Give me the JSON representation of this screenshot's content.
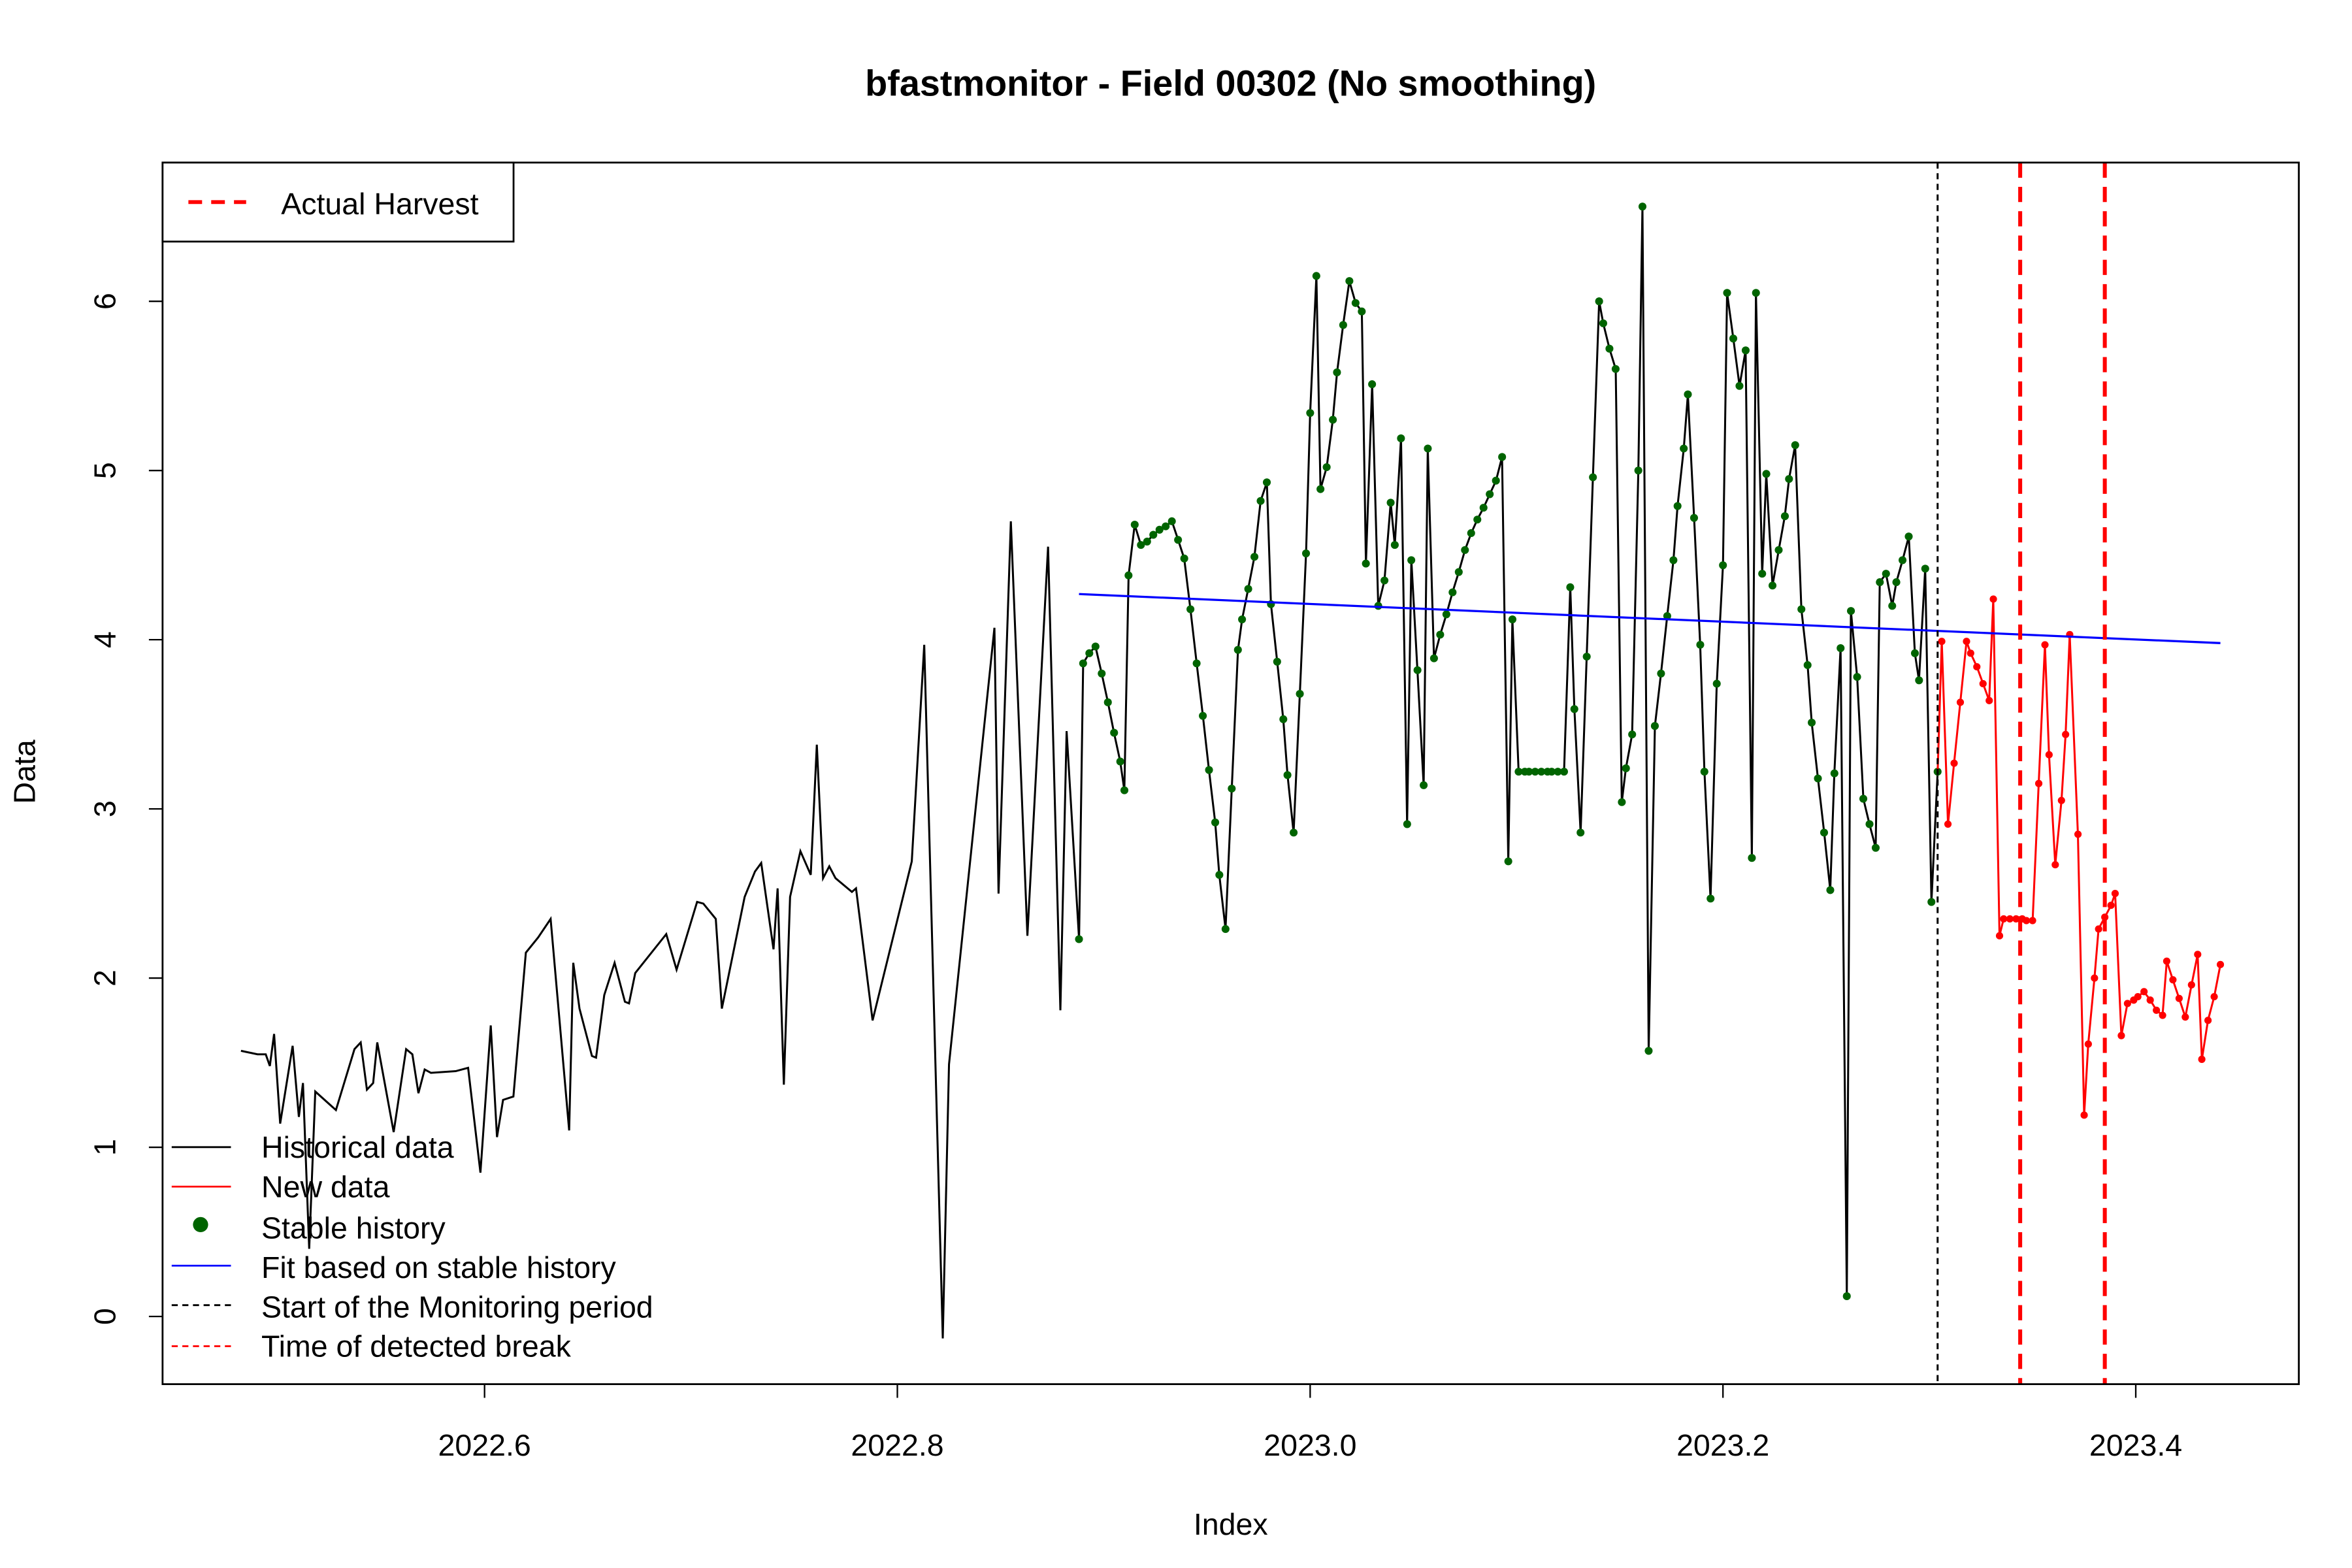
{
  "chart_data": {
    "type": "line",
    "title": "bfastmonitor - Field 00302 (No smoothing)",
    "xlabel": "Index",
    "ylabel": "Data",
    "xlim": [
      2022.444,
      2023.479
    ],
    "ylim": [
      -0.4,
      6.82
    ],
    "x_ticks": [
      {
        "v": 2022.6,
        "label": "2022.6"
      },
      {
        "v": 2022.8,
        "label": "2022.8"
      },
      {
        "v": 2023.0,
        "label": "2023.0"
      },
      {
        "v": 2023.2,
        "label": "2023.2"
      },
      {
        "v": 2023.4,
        "label": "2023.4"
      }
    ],
    "y_ticks": [
      {
        "v": 0,
        "label": "0"
      },
      {
        "v": 1,
        "label": "1"
      },
      {
        "v": 2,
        "label": "2"
      },
      {
        "v": 3,
        "label": "3"
      },
      {
        "v": 4,
        "label": "4"
      },
      {
        "v": 5,
        "label": "5"
      },
      {
        "v": 6,
        "label": "6"
      }
    ],
    "grid": false,
    "colors": {
      "historical": "#000000",
      "new": "#ff0000",
      "stable": "#006400",
      "fit": "#0000ff",
      "monitor_start": "#000000",
      "harvest": "#ff0000"
    },
    "historical_unstable": [
      [
        2022.482,
        1.57
      ],
      [
        2022.49,
        1.55
      ],
      [
        2022.494,
        1.55
      ],
      [
        2022.496,
        1.48
      ],
      [
        2022.498,
        1.67
      ],
      [
        2022.501,
        1.14
      ],
      [
        2022.507,
        1.6
      ],
      [
        2022.51,
        1.18
      ],
      [
        2022.512,
        1.38
      ],
      [
        2022.515,
        0.4
      ],
      [
        2022.518,
        1.33
      ],
      [
        2022.528,
        1.22
      ],
      [
        2022.537,
        1.58
      ],
      [
        2022.54,
        1.62
      ],
      [
        2022.543,
        1.34
      ],
      [
        2022.546,
        1.38
      ],
      [
        2022.548,
        1.62
      ],
      [
        2022.556,
        1.09
      ],
      [
        2022.562,
        1.58
      ],
      [
        2022.565,
        1.55
      ],
      [
        2022.568,
        1.32
      ],
      [
        2022.571,
        1.46
      ],
      [
        2022.574,
        1.44
      ],
      [
        2022.586,
        1.45
      ],
      [
        2022.592,
        1.47
      ],
      [
        2022.598,
        0.85
      ],
      [
        2022.603,
        1.72
      ],
      [
        2022.606,
        1.06
      ],
      [
        2022.609,
        1.28
      ],
      [
        2022.614,
        1.3
      ],
      [
        2022.62,
        2.15
      ],
      [
        2022.626,
        2.24
      ],
      [
        2022.632,
        2.35
      ],
      [
        2022.641,
        1.1
      ],
      [
        2022.643,
        2.09
      ],
      [
        2022.646,
        1.82
      ],
      [
        2022.652,
        1.54
      ],
      [
        2022.654,
        1.53
      ],
      [
        2022.658,
        1.9
      ],
      [
        2022.663,
        2.09
      ],
      [
        2022.668,
        1.86
      ],
      [
        2022.67,
        1.85
      ],
      [
        2022.673,
        2.03
      ],
      [
        2022.688,
        2.26
      ],
      [
        2022.693,
        2.05
      ],
      [
        2022.703,
        2.45
      ],
      [
        2022.706,
        2.44
      ],
      [
        2022.712,
        2.35
      ],
      [
        2022.715,
        1.82
      ],
      [
        2022.726,
        2.48
      ],
      [
        2022.731,
        2.63
      ],
      [
        2022.734,
        2.68
      ],
      [
        2022.74,
        2.17
      ],
      [
        2022.742,
        2.53
      ],
      [
        2022.745,
        1.37
      ],
      [
        2022.748,
        2.48
      ],
      [
        2022.753,
        2.75
      ],
      [
        2022.758,
        2.61
      ],
      [
        2022.761,
        3.38
      ],
      [
        2022.764,
        2.59
      ],
      [
        2022.767,
        2.66
      ],
      [
        2022.77,
        2.59
      ],
      [
        2022.778,
        2.51
      ],
      [
        2022.78,
        2.53
      ],
      [
        2022.788,
        1.75
      ],
      [
        2022.807,
        2.69
      ],
      [
        2022.813,
        3.97
      ],
      [
        2022.822,
        -0.13
      ],
      [
        2022.825,
        1.49
      ],
      [
        2022.847,
        4.07
      ],
      [
        2022.849,
        2.5
      ],
      [
        2022.855,
        4.7
      ],
      [
        2022.863,
        2.25
      ],
      [
        2022.873,
        4.55
      ],
      [
        2022.879,
        1.81
      ],
      [
        2022.882,
        3.46
      ]
    ],
    "stable_history": [
      [
        2022.888,
        2.23
      ],
      [
        2022.89,
        3.86
      ],
      [
        2022.893,
        3.92
      ],
      [
        2022.896,
        3.96
      ],
      [
        2022.899,
        3.8
      ],
      [
        2022.902,
        3.63
      ],
      [
        2022.905,
        3.45
      ],
      [
        2022.908,
        3.28
      ],
      [
        2022.91,
        3.11
      ],
      [
        2022.912,
        4.38
      ],
      [
        2022.915,
        4.68
      ],
      [
        2022.918,
        4.56
      ],
      [
        2022.921,
        4.58
      ],
      [
        2022.924,
        4.62
      ],
      [
        2022.927,
        4.65
      ],
      [
        2022.93,
        4.67
      ],
      [
        2022.933,
        4.7
      ],
      [
        2022.936,
        4.59
      ],
      [
        2022.939,
        4.48
      ],
      [
        2022.942,
        4.18
      ],
      [
        2022.945,
        3.86
      ],
      [
        2022.948,
        3.55
      ],
      [
        2022.951,
        3.23
      ],
      [
        2022.954,
        2.92
      ],
      [
        2022.956,
        2.61
      ],
      [
        2022.959,
        2.29
      ],
      [
        2022.962,
        3.12
      ],
      [
        2022.965,
        3.94
      ],
      [
        2022.967,
        4.12
      ],
      [
        2022.97,
        4.3
      ],
      [
        2022.973,
        4.49
      ],
      [
        2022.976,
        4.82
      ],
      [
        2022.979,
        4.93
      ],
      [
        2022.981,
        4.21
      ],
      [
        2022.984,
        3.87
      ],
      [
        2022.987,
        3.53
      ],
      [
        2022.989,
        3.2
      ],
      [
        2022.992,
        2.86
      ],
      [
        2022.995,
        3.68
      ],
      [
        2022.998,
        4.51
      ],
      [
        2023.0,
        5.34
      ],
      [
        2023.003,
        6.15
      ],
      [
        2023.005,
        4.89
      ],
      [
        2023.008,
        5.02
      ],
      [
        2023.011,
        5.3
      ],
      [
        2023.013,
        5.58
      ],
      [
        2023.016,
        5.86
      ],
      [
        2023.019,
        6.12
      ],
      [
        2023.022,
        5.99
      ],
      [
        2023.025,
        5.94
      ],
      [
        2023.027,
        4.45
      ],
      [
        2023.03,
        5.51
      ],
      [
        2023.033,
        4.2
      ],
      [
        2023.036,
        4.35
      ],
      [
        2023.039,
        4.81
      ],
      [
        2023.041,
        4.56
      ],
      [
        2023.044,
        5.19
      ],
      [
        2023.047,
        2.91
      ],
      [
        2023.049,
        4.47
      ],
      [
        2023.052,
        3.82
      ],
      [
        2023.055,
        3.14
      ],
      [
        2023.057,
        5.13
      ],
      [
        2023.06,
        3.89
      ],
      [
        2023.063,
        4.03
      ],
      [
        2023.066,
        4.15
      ],
      [
        2023.069,
        4.28
      ],
      [
        2023.072,
        4.4
      ],
      [
        2023.075,
        4.53
      ],
      [
        2023.078,
        4.63
      ],
      [
        2023.081,
        4.71
      ],
      [
        2023.084,
        4.78
      ],
      [
        2023.087,
        4.86
      ],
      [
        2023.09,
        4.94
      ],
      [
        2023.093,
        5.08
      ],
      [
        2023.096,
        2.69
      ],
      [
        2023.098,
        4.12
      ],
      [
        2023.101,
        3.22
      ],
      [
        2023.104,
        3.22
      ],
      [
        2023.106,
        3.22
      ],
      [
        2023.109,
        3.22
      ],
      [
        2023.112,
        3.22
      ],
      [
        2023.115,
        3.22
      ],
      [
        2023.117,
        3.22
      ],
      [
        2023.12,
        3.22
      ],
      [
        2023.123,
        3.22
      ],
      [
        2023.126,
        4.31
      ],
      [
        2023.128,
        3.59
      ],
      [
        2023.131,
        2.86
      ],
      [
        2023.134,
        3.9
      ],
      [
        2023.137,
        4.96
      ],
      [
        2023.14,
        6.0
      ],
      [
        2023.142,
        5.87
      ],
      [
        2023.145,
        5.72
      ],
      [
        2023.148,
        5.6
      ],
      [
        2023.151,
        3.04
      ],
      [
        2023.153,
        3.24
      ],
      [
        2023.156,
        3.44
      ],
      [
        2023.159,
        5.0
      ],
      [
        2023.161,
        6.56
      ],
      [
        2023.164,
        1.57
      ],
      [
        2023.167,
        3.49
      ],
      [
        2023.17,
        3.8
      ],
      [
        2023.173,
        4.14
      ],
      [
        2023.176,
        4.47
      ],
      [
        2023.178,
        4.79
      ],
      [
        2023.181,
        5.13
      ],
      [
        2023.183,
        5.45
      ],
      [
        2023.186,
        4.72
      ],
      [
        2023.189,
        3.97
      ],
      [
        2023.191,
        3.22
      ],
      [
        2023.194,
        2.47
      ],
      [
        2023.197,
        3.74
      ],
      [
        2023.2,
        4.44
      ],
      [
        2023.202,
        6.05
      ],
      [
        2023.205,
        5.78
      ],
      [
        2023.208,
        5.5
      ],
      [
        2023.211,
        5.71
      ],
      [
        2023.214,
        2.71
      ],
      [
        2023.216,
        6.05
      ],
      [
        2023.219,
        4.39
      ],
      [
        2023.221,
        4.98
      ],
      [
        2023.224,
        4.32
      ],
      [
        2023.227,
        4.53
      ],
      [
        2023.23,
        4.73
      ],
      [
        2023.232,
        4.95
      ],
      [
        2023.235,
        5.15
      ],
      [
        2023.238,
        4.18
      ],
      [
        2023.241,
        3.85
      ],
      [
        2023.243,
        3.51
      ],
      [
        2023.246,
        3.18
      ],
      [
        2023.249,
        2.86
      ],
      [
        2023.252,
        2.52
      ],
      [
        2023.254,
        3.21
      ],
      [
        2023.257,
        3.95
      ],
      [
        2023.26,
        0.12
      ],
      [
        2023.262,
        4.17
      ],
      [
        2023.265,
        3.78
      ],
      [
        2023.268,
        3.06
      ],
      [
        2023.271,
        2.91
      ],
      [
        2023.274,
        2.77
      ],
      [
        2023.276,
        4.34
      ],
      [
        2023.279,
        4.39
      ],
      [
        2023.282,
        4.2
      ],
      [
        2023.284,
        4.34
      ],
      [
        2023.287,
        4.47
      ],
      [
        2023.29,
        4.61
      ],
      [
        2023.293,
        3.92
      ],
      [
        2023.295,
        3.76
      ],
      [
        2023.298,
        4.42
      ],
      [
        2023.301,
        2.45
      ],
      [
        2023.304,
        3.22
      ]
    ],
    "new_data": [
      [
        2023.306,
        3.99
      ],
      [
        2023.309,
        2.91
      ],
      [
        2023.312,
        3.27
      ],
      [
        2023.315,
        3.63
      ],
      [
        2023.318,
        3.99
      ],
      [
        2023.32,
        3.92
      ],
      [
        2023.323,
        3.84
      ],
      [
        2023.326,
        3.74
      ],
      [
        2023.329,
        3.64
      ],
      [
        2023.331,
        4.24
      ],
      [
        2023.334,
        2.25
      ],
      [
        2023.336,
        2.35
      ],
      [
        2023.339,
        2.35
      ],
      [
        2023.342,
        2.35
      ],
      [
        2023.345,
        2.35
      ],
      [
        2023.347,
        2.34
      ],
      [
        2023.35,
        2.34
      ],
      [
        2023.353,
        3.15
      ],
      [
        2023.356,
        3.97
      ],
      [
        2023.358,
        3.32
      ],
      [
        2023.361,
        2.67
      ],
      [
        2023.364,
        3.05
      ],
      [
        2023.366,
        3.44
      ],
      [
        2023.368,
        4.03
      ],
      [
        2023.372,
        2.85
      ],
      [
        2023.375,
        1.19
      ],
      [
        2023.377,
        1.61
      ],
      [
        2023.38,
        2.0
      ],
      [
        2023.382,
        2.29
      ],
      [
        2023.385,
        2.36
      ],
      [
        2023.388,
        2.43
      ],
      [
        2023.39,
        2.5
      ],
      [
        2023.393,
        1.66
      ],
      [
        2023.396,
        1.85
      ],
      [
        2023.399,
        1.87
      ],
      [
        2023.401,
        1.89
      ],
      [
        2023.404,
        1.92
      ],
      [
        2023.407,
        1.87
      ],
      [
        2023.41,
        1.81
      ],
      [
        2023.413,
        1.78
      ],
      [
        2023.415,
        2.1
      ],
      [
        2023.418,
        1.99
      ],
      [
        2023.421,
        1.88
      ],
      [
        2023.424,
        1.77
      ],
      [
        2023.427,
        1.96
      ],
      [
        2023.43,
        2.14
      ],
      [
        2023.432,
        1.52
      ],
      [
        2023.435,
        1.75
      ],
      [
        2023.438,
        1.89
      ],
      [
        2023.441,
        2.08
      ]
    ],
    "fit_line": [
      [
        2022.888,
        4.27
      ],
      [
        2023.441,
        3.98
      ]
    ],
    "monitoring_start": 2023.304,
    "actual_harvest": [
      2023.344,
      2023.385
    ],
    "legend_top": {
      "placement": "top-left",
      "label": "Actual Harvest"
    },
    "legend_bottom": {
      "placement": "bottom-left",
      "items": [
        "Historical data",
        "New data",
        "Stable history",
        "Fit based on stable history",
        "Start of the Monitoring period",
        "Time of detected break"
      ]
    }
  }
}
